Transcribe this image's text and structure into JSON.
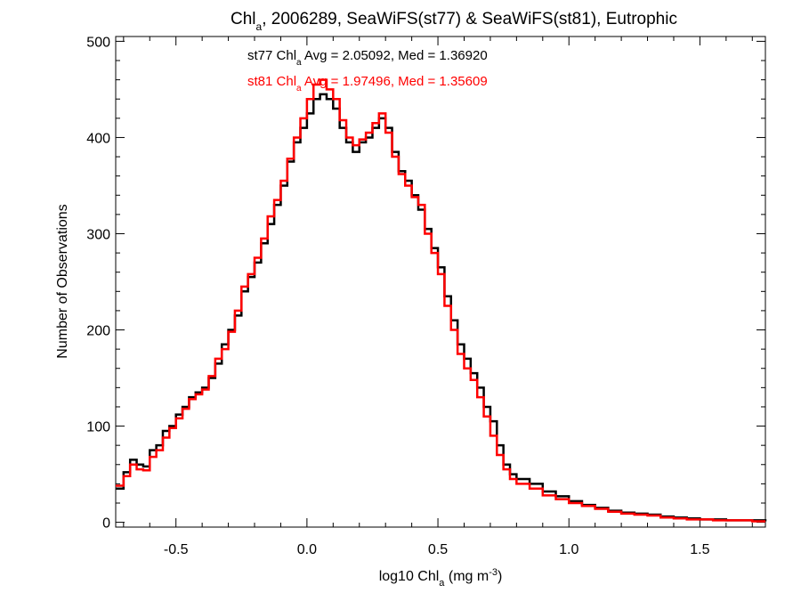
{
  "chart_data": {
    "type": "line",
    "title": {
      "base": "Chl",
      "sub": "a",
      "rest": ", 2006289, SeaWiFS(st77) & SeaWiFS(st81), Eutrophic"
    },
    "xlabel": {
      "base": "log10 Chl",
      "sub": "a",
      "mid": " (mg m",
      "sup": "-3",
      "end": ")"
    },
    "ylabel": "Number of Observations",
    "xlim": [
      -0.73,
      1.75
    ],
    "ylim": [
      -5,
      505
    ],
    "x_ticks": [
      {
        "value": -0.5,
        "label": "-0.5"
      },
      {
        "value": 0.0,
        "label": "0.0"
      },
      {
        "value": 0.5,
        "label": "0.5"
      },
      {
        "value": 1.0,
        "label": "1.0"
      },
      {
        "value": 1.5,
        "label": "1.5"
      }
    ],
    "y_ticks": [
      {
        "value": 0,
        "label": "0"
      },
      {
        "value": 100,
        "label": "100"
      },
      {
        "value": 200,
        "label": "200"
      },
      {
        "value": 300,
        "label": "300"
      },
      {
        "value": 400,
        "label": "400"
      },
      {
        "value": 500,
        "label": "500"
      }
    ],
    "grid": false,
    "annotations": [
      {
        "series": "st77",
        "color": "#000000",
        "prefix": "st77 Chl",
        "sub": "a",
        "suffix": " Avg = 2.05092, Med = 1.36920"
      },
      {
        "series": "st81",
        "color": "#ff0000",
        "prefix": "st81 Chl",
        "sub": "a",
        "suffix": " Avg = 1.97496, Med = 1.35609"
      }
    ],
    "series": [
      {
        "color": "#000000",
        "x": [
          -0.73,
          -0.7,
          -0.675,
          -0.65,
          -0.625,
          -0.6,
          -0.575,
          -0.55,
          -0.525,
          -0.5,
          -0.475,
          -0.45,
          -0.425,
          -0.4,
          -0.375,
          -0.35,
          -0.325,
          -0.3,
          -0.275,
          -0.25,
          -0.225,
          -0.2,
          -0.175,
          -0.15,
          -0.125,
          -0.1,
          -0.075,
          -0.05,
          -0.025,
          0.0,
          0.025,
          0.05,
          0.075,
          0.1,
          0.125,
          0.15,
          0.175,
          0.2,
          0.225,
          0.25,
          0.275,
          0.3,
          0.325,
          0.35,
          0.375,
          0.4,
          0.425,
          0.45,
          0.475,
          0.5,
          0.525,
          0.55,
          0.575,
          0.6,
          0.625,
          0.65,
          0.675,
          0.7,
          0.725,
          0.75,
          0.775,
          0.8,
          0.85,
          0.9,
          0.95,
          1.0,
          1.05,
          1.1,
          1.15,
          1.2,
          1.25,
          1.3,
          1.35,
          1.4,
          1.45,
          1.5,
          1.55,
          1.6,
          1.65,
          1.7,
          1.75
        ],
        "values": [
          35,
          52,
          65,
          60,
          58,
          75,
          80,
          95,
          100,
          112,
          120,
          130,
          135,
          140,
          150,
          165,
          185,
          200,
          215,
          240,
          255,
          270,
          290,
          310,
          330,
          350,
          375,
          395,
          410,
          425,
          440,
          445,
          440,
          430,
          410,
          395,
          385,
          395,
          400,
          410,
          420,
          410,
          385,
          365,
          355,
          340,
          325,
          305,
          285,
          265,
          235,
          210,
          185,
          170,
          155,
          140,
          120,
          105,
          80,
          60,
          50,
          45,
          40,
          32,
          27,
          22,
          18,
          15,
          12,
          10,
          9,
          8,
          6,
          5,
          4,
          3,
          3,
          2,
          2,
          2,
          1
        ]
      },
      {
        "color": "#ff0000",
        "x": [
          -0.73,
          -0.7,
          -0.675,
          -0.65,
          -0.625,
          -0.6,
          -0.575,
          -0.55,
          -0.525,
          -0.5,
          -0.475,
          -0.45,
          -0.425,
          -0.4,
          -0.375,
          -0.35,
          -0.325,
          -0.3,
          -0.275,
          -0.25,
          -0.225,
          -0.2,
          -0.175,
          -0.15,
          -0.125,
          -0.1,
          -0.075,
          -0.05,
          -0.025,
          0.0,
          0.025,
          0.05,
          0.075,
          0.1,
          0.125,
          0.15,
          0.175,
          0.2,
          0.225,
          0.25,
          0.275,
          0.3,
          0.325,
          0.35,
          0.375,
          0.4,
          0.425,
          0.45,
          0.475,
          0.5,
          0.525,
          0.55,
          0.575,
          0.6,
          0.625,
          0.65,
          0.675,
          0.7,
          0.725,
          0.75,
          0.775,
          0.8,
          0.85,
          0.9,
          0.95,
          1.0,
          1.05,
          1.1,
          1.15,
          1.2,
          1.25,
          1.3,
          1.35,
          1.4,
          1.45,
          1.5,
          1.55,
          1.6,
          1.65,
          1.7,
          1.75
        ],
        "values": [
          38,
          48,
          60,
          55,
          54,
          68,
          75,
          88,
          98,
          108,
          118,
          128,
          133,
          138,
          152,
          170,
          180,
          198,
          220,
          245,
          258,
          275,
          295,
          318,
          335,
          355,
          378,
          400,
          420,
          440,
          455,
          460,
          450,
          440,
          418,
          400,
          392,
          398,
          405,
          415,
          425,
          405,
          380,
          362,
          350,
          338,
          330,
          300,
          280,
          258,
          225,
          200,
          175,
          160,
          148,
          130,
          110,
          90,
          70,
          55,
          45,
          40,
          35,
          28,
          24,
          20,
          17,
          14,
          11,
          9,
          8,
          7,
          5,
          4,
          3,
          3,
          2,
          2,
          2,
          1,
          1
        ]
      }
    ]
  }
}
